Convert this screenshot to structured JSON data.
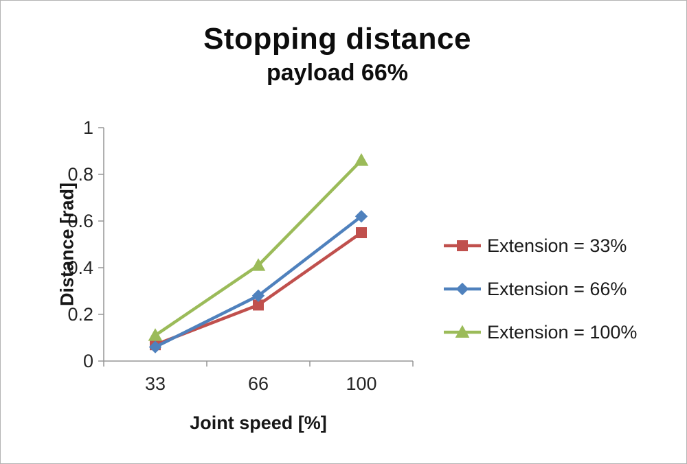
{
  "chart_data": {
    "type": "line",
    "title": "Stopping distance",
    "subtitle": "payload 66%",
    "xlabel": "Joint speed [%]",
    "ylabel": "Distance [rad]",
    "categories": [
      "33",
      "66",
      "100"
    ],
    "series": [
      {
        "name": "Extension = 33%",
        "color": "#C0504D",
        "marker": "square",
        "values": [
          0.07,
          0.24,
          0.55
        ]
      },
      {
        "name": "Extension = 66%",
        "color": "#4F81BD",
        "marker": "diamond",
        "values": [
          0.06,
          0.28,
          0.62
        ]
      },
      {
        "name": "Extension = 100%",
        "color": "#9BBB59",
        "marker": "triangle",
        "values": [
          0.11,
          0.41,
          0.86
        ]
      }
    ],
    "ylim": [
      0,
      1
    ],
    "yticks": [
      0,
      0.2,
      0.4,
      0.6,
      0.8,
      1
    ],
    "legend_position": "right",
    "grid": false,
    "axis_color": "#959595",
    "text_color": "#262626"
  }
}
